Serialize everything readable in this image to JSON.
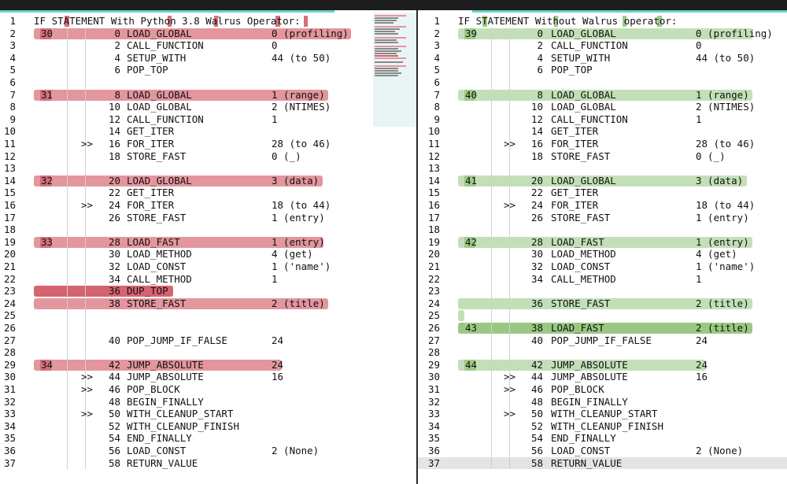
{
  "panes": [
    {
      "name": "left",
      "kind": "del",
      "lines": [
        {
          "ln": "1",
          "title": "IF STATEMENT With Python 3.8 Walrus Operator:"
        },
        {
          "ln": "2",
          "orig": "30",
          "off": "0",
          "op": "LOAD_GLOBAL",
          "arg": "0 (profiling)"
        },
        {
          "ln": "3",
          "off": "2",
          "op": "CALL_FUNCTION",
          "arg": "0"
        },
        {
          "ln": "4",
          "off": "4",
          "op": "SETUP_WITH",
          "arg": "44 (to 50)"
        },
        {
          "ln": "5",
          "off": "6",
          "op": "POP_TOP"
        },
        {
          "ln": "6"
        },
        {
          "ln": "7",
          "orig": "31",
          "off": "8",
          "op": "LOAD_GLOBAL",
          "arg": "1 (range)"
        },
        {
          "ln": "8",
          "off": "10",
          "op": "LOAD_GLOBAL",
          "arg": "2 (NTIMES)"
        },
        {
          "ln": "9",
          "off": "12",
          "op": "CALL_FUNCTION",
          "arg": "1"
        },
        {
          "ln": "10",
          "off": "14",
          "op": "GET_ITER"
        },
        {
          "ln": "11",
          "jmp": ">>",
          "off": "16",
          "op": "FOR_ITER",
          "arg": "28 (to 46)"
        },
        {
          "ln": "12",
          "off": "18",
          "op": "STORE_FAST",
          "arg": "0 (_)"
        },
        {
          "ln": "13"
        },
        {
          "ln": "14",
          "orig": "32",
          "off": "20",
          "op": "LOAD_GLOBAL",
          "arg": "3 (data)"
        },
        {
          "ln": "15",
          "off": "22",
          "op": "GET_ITER"
        },
        {
          "ln": "16",
          "jmp": ">>",
          "off": "24",
          "op": "FOR_ITER",
          "arg": "18 (to 44)"
        },
        {
          "ln": "17",
          "off": "26",
          "op": "STORE_FAST",
          "arg": "1 (entry)"
        },
        {
          "ln": "18"
        },
        {
          "ln": "19",
          "orig": "33",
          "off": "28",
          "op": "LOAD_FAST",
          "arg": "1 (entry)"
        },
        {
          "ln": "20",
          "off": "30",
          "op": "LOAD_METHOD",
          "arg": "4 (get)"
        },
        {
          "ln": "21",
          "off": "32",
          "op": "LOAD_CONST",
          "arg": "1 ('name')"
        },
        {
          "ln": "22",
          "off": "34",
          "op": "CALL_METHOD",
          "arg": "1"
        },
        {
          "ln": "23",
          "off": "36",
          "op": "DUP_TOP"
        },
        {
          "ln": "24",
          "off": "38",
          "op": "STORE_FAST",
          "arg": "2 (title)"
        },
        {
          "ln": "25"
        },
        {
          "ln": "26"
        },
        {
          "ln": "27",
          "off": "40",
          "op": "POP_JUMP_IF_FALSE",
          "arg": "24"
        },
        {
          "ln": "28"
        },
        {
          "ln": "29",
          "orig": "34",
          "off": "42",
          "op": "JUMP_ABSOLUTE",
          "arg": "24"
        },
        {
          "ln": "30",
          "jmp": ">>",
          "off": "44",
          "op": "JUMP_ABSOLUTE",
          "arg": "16"
        },
        {
          "ln": "31",
          "jmp": ">>",
          "off": "46",
          "op": "POP_BLOCK"
        },
        {
          "ln": "32",
          "off": "48",
          "op": "BEGIN_FINALLY"
        },
        {
          "ln": "33",
          "jmp": ">>",
          "off": "50",
          "op": "WITH_CLEANUP_START"
        },
        {
          "ln": "34",
          "off": "52",
          "op": "WITH_CLEANUP_FINISH"
        },
        {
          "ln": "35",
          "off": "54",
          "op": "END_FINALLY"
        },
        {
          "ln": "36",
          "off": "56",
          "op": "LOAD_CONST",
          "arg": "2 (None)"
        },
        {
          "ln": "37",
          "off": "58",
          "op": "RETURN_VALUE"
        }
      ]
    },
    {
      "name": "right",
      "kind": "add",
      "lines": [
        {
          "ln": "1",
          "title": "IF STATEMENT Without Walrus operator:"
        },
        {
          "ln": "2",
          "orig": "39",
          "off": "0",
          "op": "LOAD_GLOBAL",
          "arg": "0 (profiling)"
        },
        {
          "ln": "3",
          "off": "2",
          "op": "CALL_FUNCTION",
          "arg": "0"
        },
        {
          "ln": "4",
          "off": "4",
          "op": "SETUP_WITH",
          "arg": "44 (to 50)"
        },
        {
          "ln": "5",
          "off": "6",
          "op": "POP_TOP"
        },
        {
          "ln": "6"
        },
        {
          "ln": "7",
          "orig": "40",
          "off": "8",
          "op": "LOAD_GLOBAL",
          "arg": "1 (range)"
        },
        {
          "ln": "8",
          "off": "10",
          "op": "LOAD_GLOBAL",
          "arg": "2 (NTIMES)"
        },
        {
          "ln": "9",
          "off": "12",
          "op": "CALL_FUNCTION",
          "arg": "1"
        },
        {
          "ln": "10",
          "off": "14",
          "op": "GET_ITER"
        },
        {
          "ln": "11",
          "jmp": ">>",
          "off": "16",
          "op": "FOR_ITER",
          "arg": "28 (to 46)"
        },
        {
          "ln": "12",
          "off": "18",
          "op": "STORE_FAST",
          "arg": "0 (_)"
        },
        {
          "ln": "13"
        },
        {
          "ln": "14",
          "orig": "41",
          "off": "20",
          "op": "LOAD_GLOBAL",
          "arg": "3 (data)"
        },
        {
          "ln": "15",
          "off": "22",
          "op": "GET_ITER"
        },
        {
          "ln": "16",
          "jmp": ">>",
          "off": "24",
          "op": "FOR_ITER",
          "arg": "18 (to 44)"
        },
        {
          "ln": "17",
          "off": "26",
          "op": "STORE_FAST",
          "arg": "1 (entry)"
        },
        {
          "ln": "18"
        },
        {
          "ln": "19",
          "orig": "42",
          "off": "28",
          "op": "LOAD_FAST",
          "arg": "1 (entry)"
        },
        {
          "ln": "20",
          "off": "30",
          "op": "LOAD_METHOD",
          "arg": "4 (get)"
        },
        {
          "ln": "21",
          "off": "32",
          "op": "LOAD_CONST",
          "arg": "1 ('name')"
        },
        {
          "ln": "22",
          "off": "34",
          "op": "CALL_METHOD",
          "arg": "1"
        },
        {
          "ln": "23"
        },
        {
          "ln": "24",
          "off": "36",
          "op": "STORE_FAST",
          "arg": "2 (title)"
        },
        {
          "ln": "25"
        },
        {
          "ln": "26",
          "orig": "43",
          "off": "38",
          "op": "LOAD_FAST",
          "arg": "2 (title)"
        },
        {
          "ln": "27",
          "off": "40",
          "op": "POP_JUMP_IF_FALSE",
          "arg": "24"
        },
        {
          "ln": "28"
        },
        {
          "ln": "29",
          "orig": "44",
          "off": "42",
          "op": "JUMP_ABSOLUTE",
          "arg": "24"
        },
        {
          "ln": "30",
          "jmp": ">>",
          "off": "44",
          "op": "JUMP_ABSOLUTE",
          "arg": "16"
        },
        {
          "ln": "31",
          "jmp": ">>",
          "off": "46",
          "op": "POP_BLOCK"
        },
        {
          "ln": "32",
          "off": "48",
          "op": "BEGIN_FINALLY"
        },
        {
          "ln": "33",
          "jmp": ">>",
          "off": "50",
          "op": "WITH_CLEANUP_START"
        },
        {
          "ln": "34",
          "off": "52",
          "op": "WITH_CLEANUP_FINISH"
        },
        {
          "ln": "35",
          "off": "54",
          "op": "END_FINALLY"
        },
        {
          "ln": "36",
          "off": "56",
          "op": "LOAD_CONST",
          "arg": "2 (None)"
        },
        {
          "ln": "37",
          "off": "58",
          "op": "RETURN_VALUE"
        }
      ]
    }
  ],
  "colors": {
    "deleted": "#e3969d",
    "deleted_strong": "#d66370",
    "added": "#c3dfb7",
    "added_strong": "#99c882",
    "current_line": "#e4e4e4",
    "accent": "#6fd0cb"
  }
}
